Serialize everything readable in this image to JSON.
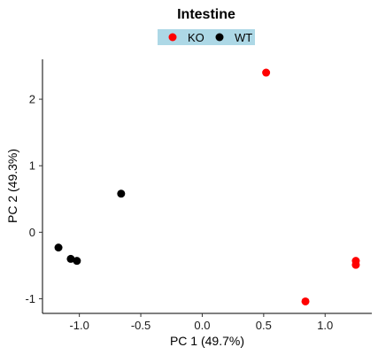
{
  "chart_data": {
    "type": "scatter",
    "title": "Intestine",
    "xlabel": "PC 1 (49.7%)",
    "ylabel": "PC 2 (49.3%)",
    "xlim": [
      -1.3,
      1.38
    ],
    "ylim": [
      -1.22,
      2.6
    ],
    "xticks": [
      -1.0,
      -0.5,
      0.0,
      0.5,
      1.0
    ],
    "xtick_labels": [
      "-1.0",
      "-0.5",
      "0.0",
      "0.5",
      "1.0"
    ],
    "yticks": [
      -1,
      0,
      1,
      2
    ],
    "ytick_labels": [
      "-1",
      "0",
      "1",
      "2"
    ],
    "grid": false,
    "legend_position": "top",
    "legend_background": "#add8e6",
    "series": [
      {
        "name": "KO",
        "color": "#ff0000",
        "points": [
          {
            "x": 0.52,
            "y": 2.4
          },
          {
            "x": 0.84,
            "y": -1.04
          },
          {
            "x": 1.25,
            "y": -0.43
          },
          {
            "x": 1.25,
            "y": -0.49
          }
        ]
      },
      {
        "name": "WT",
        "color": "#000000",
        "points": [
          {
            "x": -0.66,
            "y": 0.58
          },
          {
            "x": -1.17,
            "y": -0.23
          },
          {
            "x": -1.07,
            "y": -0.4
          },
          {
            "x": -1.02,
            "y": -0.43
          }
        ]
      }
    ]
  }
}
